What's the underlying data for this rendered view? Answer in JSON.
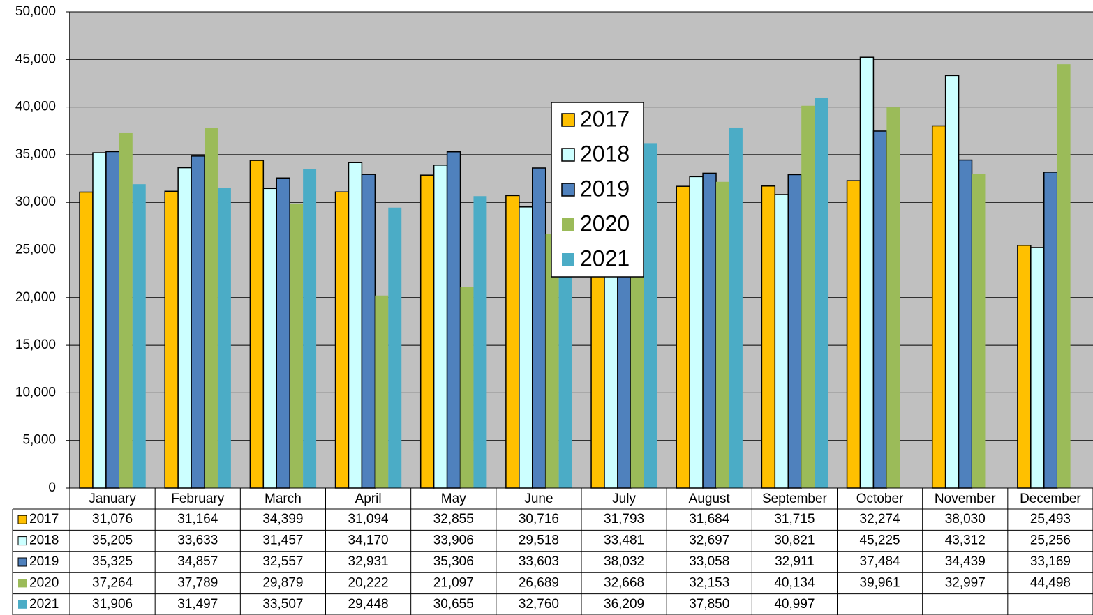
{
  "chart_data": {
    "type": "bar",
    "categories": [
      "January",
      "February",
      "March",
      "April",
      "May",
      "June",
      "July",
      "August",
      "September",
      "October",
      "November",
      "December"
    ],
    "series": [
      {
        "name": "2017",
        "color": "#FFC000",
        "outline": true,
        "values": [
          31076,
          31164,
          34399,
          31094,
          32855,
          30716,
          31793,
          31684,
          31715,
          32274,
          38030,
          25493
        ],
        "value_labels": [
          "31,076",
          "31,164",
          "34,399",
          "31,094",
          "32,855",
          "30,716",
          "31,793",
          "31,684",
          "31,715",
          "32,274",
          "38,030",
          "25,493"
        ]
      },
      {
        "name": "2018",
        "color": "#CCFFFF",
        "outline": true,
        "values": [
          35205,
          33633,
          31457,
          34170,
          33906,
          29518,
          33481,
          32697,
          30821,
          45225,
          43312,
          25256
        ],
        "value_labels": [
          "35,205",
          "33,633",
          "31,457",
          "34,170",
          "33,906",
          "29,518",
          "33,481",
          "32,697",
          "30,821",
          "45,225",
          "43,312",
          "25,256"
        ]
      },
      {
        "name": "2019",
        "color": "#4F81BD",
        "outline": true,
        "values": [
          35325,
          34857,
          32557,
          32931,
          35306,
          33603,
          38032,
          33058,
          32911,
          37484,
          34439,
          33169
        ],
        "value_labels": [
          "35,325",
          "34,857",
          "32,557",
          "32,931",
          "35,306",
          "33,603",
          "38,032",
          "33,058",
          "32,911",
          "37,484",
          "34,439",
          "33,169"
        ]
      },
      {
        "name": "2020",
        "color": "#9BBB59",
        "outline": false,
        "values": [
          37264,
          37789,
          29879,
          20222,
          21097,
          26689,
          32668,
          32153,
          40134,
          39961,
          32997,
          44498
        ],
        "value_labels": [
          "37,264",
          "37,789",
          "29,879",
          "20,222",
          "21,097",
          "26,689",
          "32,668",
          "32,153",
          "40,134",
          "39,961",
          "32,997",
          "44,498"
        ]
      },
      {
        "name": "2021",
        "color": "#4BACC6",
        "outline": false,
        "values": [
          31906,
          31497,
          33507,
          29448,
          30655,
          32760,
          36209,
          37850,
          40997,
          null,
          null,
          null
        ],
        "value_labels": [
          "31,906",
          "31,497",
          "33,507",
          "29,448",
          "30,655",
          "32,760",
          "36,209",
          "37,850",
          "40,997",
          null,
          null,
          null
        ]
      }
    ],
    "ylim": [
      0,
      50000
    ],
    "yticks": [
      0,
      {
        "value": 5000,
        "label": "5,000"
      },
      {
        "value": 10000,
        "label": "10,000"
      },
      {
        "value": 15000,
        "label": "15,000"
      },
      {
        "value": 20000,
        "label": "20,000"
      },
      {
        "value": 25000,
        "label": "25,000"
      },
      {
        "value": 30000,
        "label": "30,000"
      },
      {
        "value": 35000,
        "label": "35,000"
      },
      {
        "value": 40000,
        "label": "40,000"
      },
      {
        "value": 45000,
        "label": "45,000"
      },
      {
        "value": 50000,
        "label": "50,000"
      }
    ],
    "grid": true,
    "plot_background": "#C0C0C0",
    "legend": "center",
    "data_table": true
  }
}
